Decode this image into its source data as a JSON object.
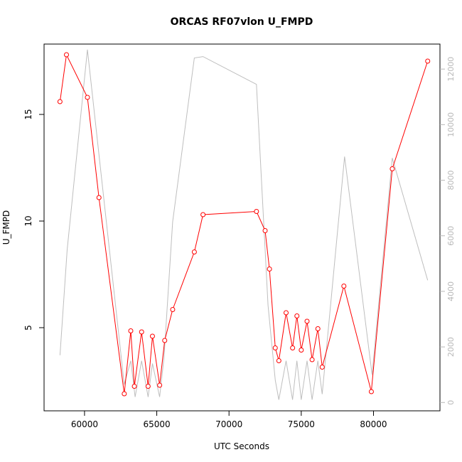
{
  "chart_data": {
    "type": "line",
    "title": "ORCAS RF07vlon U_FMPD",
    "xlabel": "UTC Seconds",
    "ylabel": "U_FMPD",
    "xlim": [
      57200,
      84600
    ],
    "ylim": [
      1.1,
      18.3
    ],
    "y2lim": [
      -300,
      12900
    ],
    "x_ticks": [
      60000,
      65000,
      70000,
      75000,
      80000
    ],
    "x_tick_labels": [
      "60000",
      "65000",
      "70000",
      "75000",
      "80000"
    ],
    "y_ticks": [
      5,
      10,
      15
    ],
    "y_tick_labels": [
      "5",
      "10",
      "15"
    ],
    "y2_ticks": [
      0,
      2000,
      4000,
      6000,
      8000,
      10000,
      12000
    ],
    "y2_tick_labels": [
      "0",
      "2000",
      "4000",
      "6000",
      "8000",
      "10000",
      "12000"
    ],
    "colors": {
      "primary": "#ff0000",
      "secondary": "#bebebe",
      "axis": "#000000",
      "axis2": "#b8b8b8"
    },
    "series": [
      {
        "axis": "left",
        "marker": "circle",
        "x": [
          58300,
          58750,
          60200,
          61000,
          62750,
          63200,
          63450,
          63950,
          64400,
          64700,
          65200,
          65550,
          66100,
          67600,
          68200,
          71900,
          72500,
          72800,
          73200,
          73450,
          73950,
          74400,
          74700,
          75000,
          75400,
          75750,
          76150,
          76450,
          77950,
          79850,
          81300,
          83750
        ],
        "y": [
          15.6,
          17.8,
          15.8,
          11.1,
          1.9,
          4.85,
          2.25,
          4.8,
          2.25,
          4.6,
          2.3,
          4.4,
          5.85,
          8.55,
          10.3,
          10.45,
          9.55,
          7.75,
          4.05,
          3.45,
          5.7,
          4.05,
          5.55,
          3.95,
          5.3,
          3.5,
          4.95,
          3.15,
          6.95,
          2.0,
          12.45,
          17.5
        ]
      },
      {
        "axis": "right",
        "marker": "none",
        "x": [
          58300,
          58800,
          60200,
          62750,
          63200,
          63500,
          63950,
          64400,
          64700,
          65200,
          65500,
          66100,
          67600,
          68200,
          71900,
          72700,
          73200,
          73450,
          73950,
          74400,
          74700,
          75000,
          75400,
          75750,
          76150,
          76450,
          78000,
          79900,
          81300,
          83750
        ],
        "y": [
          1700,
          5500,
          12700,
          650,
          1500,
          200,
          1500,
          200,
          1400,
          200,
          1600,
          6500,
          12400,
          12450,
          11450,
          3500,
          800,
          100,
          1500,
          100,
          1500,
          100,
          1500,
          100,
          1500,
          300,
          8850,
          1000,
          8800,
          4400
        ]
      }
    ]
  }
}
